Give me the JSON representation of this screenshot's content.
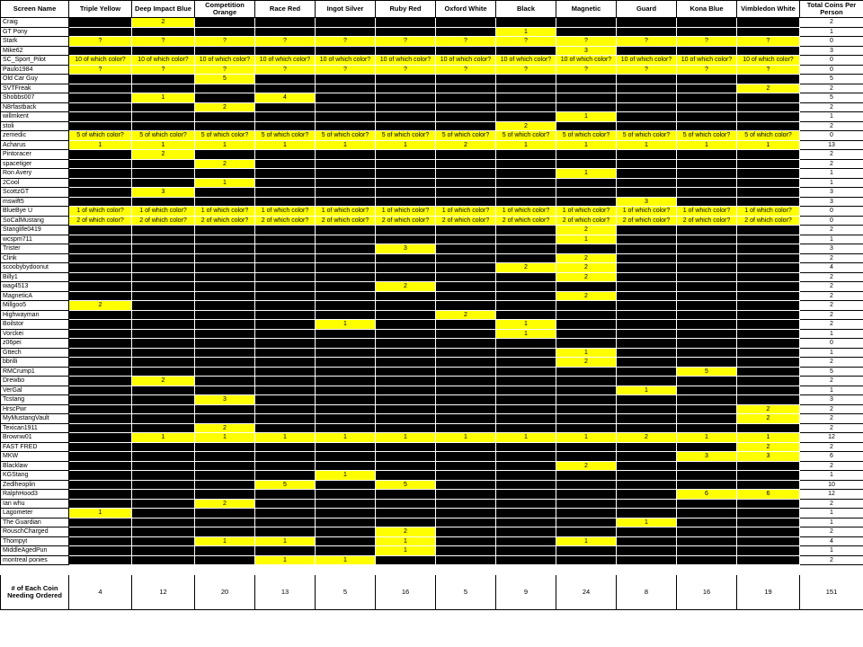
{
  "headers": [
    "Screen Name",
    "Triple Yellow",
    "Deep Impact Blue",
    "Competition Orange",
    "Race Red",
    "Ingot Silver",
    "Ruby Red",
    "Oxford White",
    "Black",
    "Magnetic",
    "Guard",
    "Kona Blue",
    "Vimbledon White",
    "Total Coins Per Person"
  ],
  "rows": [
    {
      "name": "Craig",
      "cells": [
        "",
        "2",
        "",
        "",
        "",
        "",
        "",
        "",
        "",
        "",
        "",
        ""
      ],
      "total": "2"
    },
    {
      "name": "GT Pony",
      "cells": [
        "",
        "",
        "",
        "",
        "",
        "",
        "",
        "1",
        "",
        "",
        "",
        ""
      ],
      "total": "1"
    },
    {
      "name": "Stark",
      "cells": [
        "?",
        "?",
        "?",
        "?",
        "?",
        "?",
        "?",
        "?",
        "?",
        "?",
        "?",
        "?"
      ],
      "total": "0"
    },
    {
      "name": "Mike62",
      "cells": [
        "",
        "",
        "",
        "",
        "",
        "",
        "",
        "",
        "3",
        "",
        "",
        ""
      ],
      "total": "3"
    },
    {
      "name": "SC_Sport_Pilot",
      "cells": [
        "10 of which color?",
        "10 of which color?",
        "10 of which color?",
        "10 of which color?",
        "10 of which color?",
        "10 of which color?",
        "10 of which color?",
        "10 of which color?",
        "10 of which color?",
        "10 of which color?",
        "10 of which color?",
        "10 of which color?"
      ],
      "total": "0"
    },
    {
      "name": "Paulo1984",
      "cells": [
        "?",
        "?",
        "?",
        "?",
        "?",
        "?",
        "?",
        "?",
        "?",
        "?",
        "?",
        "?"
      ],
      "total": "0"
    },
    {
      "name": "Old Car Guy",
      "cells": [
        "",
        "",
        "5",
        "",
        "",
        "",
        "",
        "",
        "",
        "",
        "",
        ""
      ],
      "total": "5"
    },
    {
      "name": "SVTFreak",
      "cells": [
        "",
        "",
        "",
        "",
        "",
        "",
        "",
        "",
        "",
        "",
        "",
        "2"
      ],
      "total": "2"
    },
    {
      "name": "Shobbs007",
      "cells": [
        "",
        "1",
        "",
        "4",
        "",
        "",
        "",
        "",
        "",
        "",
        "",
        ""
      ],
      "total": "5"
    },
    {
      "name": "N8rfastback",
      "cells": [
        "",
        "",
        "2",
        "",
        "",
        "",
        "",
        "",
        "",
        "",
        "",
        ""
      ],
      "total": "2"
    },
    {
      "name": "willmkent",
      "cells": [
        "",
        "",
        "",
        "",
        "",
        "",
        "",
        "",
        "1",
        "",
        "",
        ""
      ],
      "total": "1"
    },
    {
      "name": "stoli",
      "cells": [
        "",
        "",
        "",
        "",
        "",
        "",
        "",
        "2",
        "",
        "",
        "",
        ""
      ],
      "total": "2"
    },
    {
      "name": "zemedic",
      "cells": [
        "5 of which color?",
        "5 of which color?",
        "5 of which color?",
        "5 of which color?",
        "5 of which color?",
        "5 of which color?",
        "5 of which color?",
        "5 of which color?",
        "5 of which color?",
        "5 of which color?",
        "5 of which color?",
        "5 of which color?"
      ],
      "total": "0"
    },
    {
      "name": "Acharus",
      "cells": [
        "1",
        "1",
        "1",
        "1",
        "1",
        "1",
        "2",
        "1",
        "1",
        "1",
        "1",
        "1"
      ],
      "total": "13"
    },
    {
      "name": "Pintoracer",
      "cells": [
        "",
        "2",
        "",
        "",
        "",
        "",
        "",
        "",
        "",
        "",
        "",
        ""
      ],
      "total": "2"
    },
    {
      "name": "spacetiger",
      "cells": [
        "",
        "",
        "2",
        "",
        "",
        "",
        "",
        "",
        "",
        "",
        "",
        ""
      ],
      "total": "2"
    },
    {
      "name": "Ron Avery",
      "cells": [
        "",
        "",
        "",
        "",
        "",
        "",
        "",
        "",
        "1",
        "",
        "",
        ""
      ],
      "total": "1"
    },
    {
      "name": "2Cool",
      "cells": [
        "",
        "",
        "1",
        "",
        "",
        "",
        "",
        "",
        "",
        "",
        "",
        ""
      ],
      "total": "1"
    },
    {
      "name": "ScottzGT",
      "cells": [
        "",
        "3",
        "",
        "",
        "",
        "",
        "",
        "",
        "",
        "",
        "",
        ""
      ],
      "total": "3"
    },
    {
      "name": "mswift5",
      "cells": [
        "",
        "",
        "",
        "",
        "",
        "",
        "",
        "",
        "",
        "3",
        "",
        ""
      ],
      "total": "3"
    },
    {
      "name": "BlueBye U",
      "cells": [
        "1 of which color?",
        "1 of which color?",
        "1 of which color?",
        "1 of which color?",
        "1 of which color?",
        "1 of which color?",
        "1 of which color?",
        "1 of which color?",
        "1 of which color?",
        "1 of which color?",
        "1 of which color?",
        "1 of which color?"
      ],
      "total": "0"
    },
    {
      "name": "SoCalMustang",
      "cells": [
        "2 of which color?",
        "2 of which color?",
        "2 of which color?",
        "2 of which color?",
        "2 of which color?",
        "2 of which color?",
        "2 of which color?",
        "2 of which color?",
        "2 of which color?",
        "2 of which color?",
        "2 of which color?",
        "2 of which color?"
      ],
      "total": "0"
    },
    {
      "name": "Stanglife0419",
      "cells": [
        "",
        "",
        "",
        "",
        "",
        "",
        "",
        "",
        "2",
        "",
        "",
        ""
      ],
      "total": "2"
    },
    {
      "name": "wcspm711",
      "cells": [
        "",
        "",
        "",
        "",
        "",
        "",
        "",
        "",
        "1",
        "",
        "",
        ""
      ],
      "total": "1"
    },
    {
      "name": "Trister",
      "cells": [
        "",
        "",
        "",
        "",
        "",
        "3",
        "",
        "",
        "",
        "",
        "",
        ""
      ],
      "total": "3"
    },
    {
      "name": "Clink",
      "cells": [
        "",
        "",
        "",
        "",
        "",
        "",
        "",
        "",
        "2",
        "",
        "",
        ""
      ],
      "total": "2"
    },
    {
      "name": "scoobybydoonut",
      "cells": [
        "",
        "",
        "",
        "",
        "",
        "",
        "",
        "2",
        "2",
        "",
        "",
        ""
      ],
      "total": "4"
    },
    {
      "name": "Billy1",
      "cells": [
        "",
        "",
        "",
        "",
        "",
        "",
        "",
        "",
        "2",
        "",
        "",
        ""
      ],
      "total": "2"
    },
    {
      "name": "wag4513",
      "cells": [
        "",
        "",
        "",
        "",
        "",
        "2",
        "",
        "",
        "",
        "",
        "",
        ""
      ],
      "total": "2"
    },
    {
      "name": "MagneticA",
      "cells": [
        "",
        "",
        "",
        "",
        "",
        "",
        "",
        "",
        "2",
        "",
        "",
        ""
      ],
      "total": "2"
    },
    {
      "name": "Millgoo5",
      "cells": [
        "2",
        "",
        "",
        "",
        "",
        "",
        "",
        "",
        "",
        "",
        "",
        ""
      ],
      "total": "2"
    },
    {
      "name": "Highwayman",
      "cells": [
        "",
        "",
        "",
        "",
        "",
        "",
        "2",
        "",
        "",
        "",
        "",
        ""
      ],
      "total": "2"
    },
    {
      "name": "Boilstor",
      "cells": [
        "",
        "",
        "",
        "",
        "1",
        "",
        "",
        "1",
        "",
        "",
        "",
        ""
      ],
      "total": "2"
    },
    {
      "name": "Vorckei",
      "cells": [
        "",
        "",
        "",
        "",
        "",
        "",
        "",
        "1",
        "",
        "",
        "",
        ""
      ],
      "total": "1"
    },
    {
      "name": "z06pei",
      "cells": [
        "",
        "",
        "",
        "",
        "",
        "",
        "",
        "",
        "",
        "",
        "",
        ""
      ],
      "total": "0"
    },
    {
      "name": "Gttech",
      "cells": [
        "",
        "",
        "",
        "",
        "",
        "",
        "",
        "",
        "1",
        "",
        "",
        ""
      ],
      "total": "1"
    },
    {
      "name": "bbrilli",
      "cells": [
        "",
        "",
        "",
        "",
        "",
        "",
        "",
        "",
        "2",
        "",
        "",
        ""
      ],
      "total": "2"
    },
    {
      "name": "RMCrump1",
      "cells": [
        "",
        "",
        "",
        "",
        "",
        "",
        "",
        "",
        "",
        "",
        "5",
        ""
      ],
      "total": "5"
    },
    {
      "name": "Drewbo",
      "cells": [
        "",
        "2",
        "",
        "",
        "",
        "",
        "",
        "",
        "",
        "",
        "",
        ""
      ],
      "total": "2"
    },
    {
      "name": "VerGal",
      "cells": [
        "",
        "",
        "",
        "",
        "",
        "",
        "",
        "",
        "",
        "1",
        "",
        ""
      ],
      "total": "1"
    },
    {
      "name": "Tcstang",
      "cells": [
        "",
        "",
        "3",
        "",
        "",
        "",
        "",
        "",
        "",
        "",
        "",
        ""
      ],
      "total": "3"
    },
    {
      "name": "HrscPwr",
      "cells": [
        "",
        "",
        "",
        "",
        "",
        "",
        "",
        "",
        "",
        "",
        "",
        "2"
      ],
      "total": "2"
    },
    {
      "name": "MyMustangVault",
      "cells": [
        "",
        "",
        "",
        "",
        "",
        "",
        "",
        "",
        "",
        "",
        "",
        "2"
      ],
      "total": "2"
    },
    {
      "name": "Texican1911",
      "cells": [
        "",
        "",
        "2",
        "",
        "",
        "",
        "",
        "",
        "",
        "",
        "",
        ""
      ],
      "total": "2"
    },
    {
      "name": "Brownw01",
      "cells": [
        "",
        "1",
        "1",
        "1",
        "1",
        "1",
        "1",
        "1",
        "1",
        "2",
        "1",
        "1"
      ],
      "total": "12"
    },
    {
      "name": "FAST FRED",
      "cells": [
        "",
        "",
        "",
        "",
        "",
        "",
        "",
        "",
        "",
        "",
        "",
        "2"
      ],
      "total": "2"
    },
    {
      "name": "MKW",
      "cells": [
        "",
        "",
        "",
        "",
        "",
        "",
        "",
        "",
        "",
        "",
        "3",
        "3"
      ],
      "total": "6"
    },
    {
      "name": "Blacklaw",
      "cells": [
        "",
        "",
        "",
        "",
        "",
        "",
        "",
        "",
        "2",
        "",
        "",
        ""
      ],
      "total": "2"
    },
    {
      "name": "KGStang",
      "cells": [
        "",
        "",
        "",
        "",
        "1",
        "",
        "",
        "",
        "",
        "",
        "",
        ""
      ],
      "total": "1"
    },
    {
      "name": "Zedlheoplin",
      "cells": [
        "",
        "",
        "",
        "5",
        "",
        "5",
        "",
        "",
        "",
        "",
        "",
        ""
      ],
      "total": "10"
    },
    {
      "name": "RalphHood3",
      "cells": [
        "",
        "",
        "",
        "",
        "",
        "",
        "",
        "",
        "",
        "",
        "6",
        "6"
      ],
      "total": "12"
    },
    {
      "name": "Ian whu",
      "cells": [
        "",
        "",
        "2",
        "",
        "",
        "",
        "",
        "",
        "",
        "",
        "",
        ""
      ],
      "total": "2"
    },
    {
      "name": "Lagometer",
      "cells": [
        "1",
        "",
        "",
        "",
        "",
        "",
        "",
        "",
        "",
        "",
        "",
        ""
      ],
      "total": "1"
    },
    {
      "name": "The Guardian",
      "cells": [
        "",
        "",
        "",
        "",
        "",
        "",
        "",
        "",
        "",
        "1",
        "",
        ""
      ],
      "total": "1"
    },
    {
      "name": "RouschCharged",
      "cells": [
        "",
        "",
        "",
        "",
        "",
        "2",
        "",
        "",
        "",
        "",
        "",
        ""
      ],
      "total": "2"
    },
    {
      "name": "Thompyt",
      "cells": [
        "",
        "",
        "1",
        "1",
        "",
        "1",
        "",
        "",
        "1",
        "",
        "",
        ""
      ],
      "total": "4"
    },
    {
      "name": "MiddleAgedPun",
      "cells": [
        "",
        "",
        "",
        "",
        "",
        "1",
        "",
        "",
        "",
        "",
        "",
        ""
      ],
      "total": "1"
    },
    {
      "name": "montreal ponies",
      "cells": [
        "",
        "",
        "",
        "1",
        "1",
        "",
        "",
        "",
        "",
        "",
        "",
        ""
      ],
      "total": "2"
    }
  ],
  "footer": {
    "label": "# of Each Coin Needing Ordered",
    "values": [
      "4",
      "12",
      "20",
      "13",
      "5",
      "16",
      "5",
      "9",
      "24",
      "8",
      "16",
      "19"
    ],
    "total": "151"
  },
  "colors": {
    "highlight": "#ffff00",
    "empty_cell": "#000000"
  }
}
